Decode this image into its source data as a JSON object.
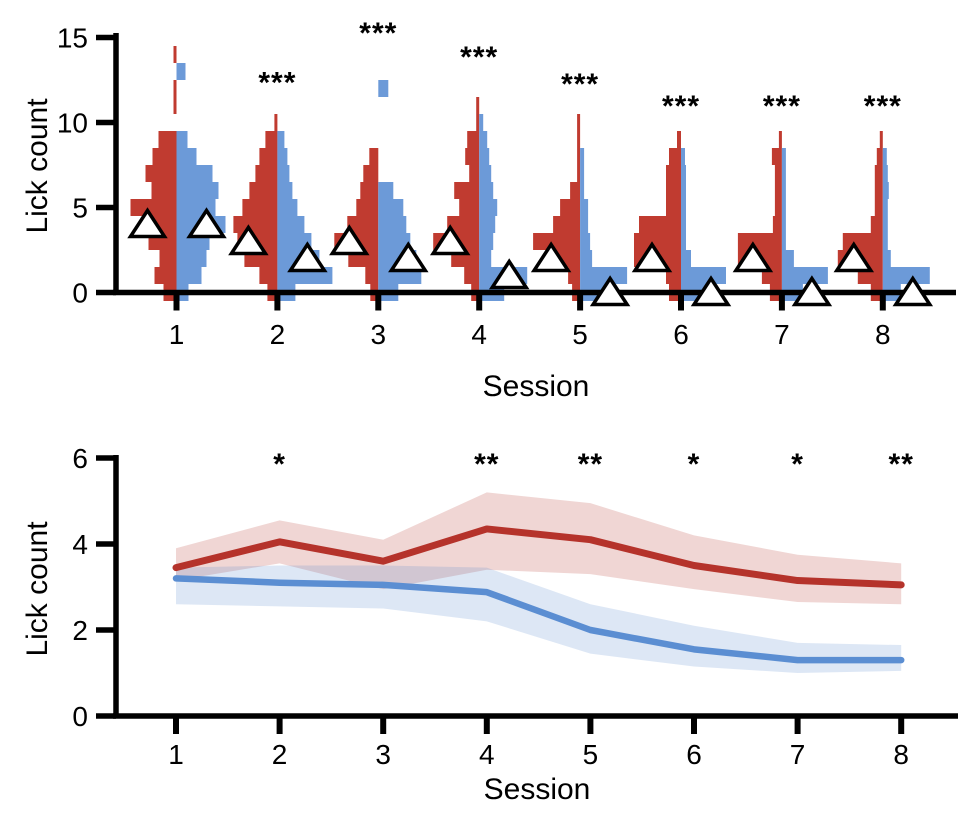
{
  "figure": {
    "background": "#ffffff",
    "colors": {
      "hist_red": "#c03b30",
      "hist_blue": "#6c9ad8",
      "line_red": "#b5332b",
      "line_blue": "#5b8ed2",
      "band_red": "rgba(182,50,42,0.20)",
      "band_blue": "rgba(85,135,205,0.20)",
      "axis": "#000000",
      "triangle_fill": "#ffffff",
      "triangle_edge": "#000000"
    }
  },
  "panels": {
    "top": {
      "ylabel": "Lick count",
      "xlabel": "Session"
    },
    "bottom": {
      "ylabel": "Lick count",
      "xlabel": "Session"
    }
  },
  "chart_data": [
    {
      "type": "split-histogram",
      "title": "",
      "xlabel": "Session",
      "ylabel": "Lick count",
      "ylim": [
        0,
        15
      ],
      "yticks": [
        0,
        5,
        10,
        15
      ],
      "xticks": [
        1,
        2,
        3,
        4,
        5,
        6,
        7,
        8
      ],
      "median_marker": "open-triangle",
      "left_series": "red",
      "right_series": "blue",
      "significance": [
        {
          "session": 2,
          "label": "***",
          "y": 12.6
        },
        {
          "session": 3,
          "label": "***",
          "y": 15.5
        },
        {
          "session": 4,
          "label": "***",
          "y": 14.1
        },
        {
          "session": 5,
          "label": "***",
          "y": 12.5
        },
        {
          "session": 6,
          "label": "***",
          "y": 11.2
        },
        {
          "session": 7,
          "label": "***",
          "y": 11.2
        },
        {
          "session": 8,
          "label": "***",
          "y": 11.2
        }
      ],
      "histograms": [
        {
          "session": 1,
          "left": [
            [
              0,
              0.26
            ],
            [
              1,
              0.44
            ],
            [
              2,
              0.34
            ],
            [
              3,
              0.56
            ],
            [
              4,
              0.66
            ],
            [
              5,
              0.92
            ],
            [
              6,
              0.5
            ],
            [
              7,
              0.62
            ],
            [
              8,
              0.48
            ],
            [
              9,
              0.36
            ],
            [
              11,
              0.06
            ],
            [
              12,
              0.06
            ],
            [
              14,
              0.06
            ]
          ],
          "right": [
            [
              0,
              0.24
            ],
            [
              1,
              0.5
            ],
            [
              2,
              0.6
            ],
            [
              3,
              0.66
            ],
            [
              4,
              0.98
            ],
            [
              5,
              0.78
            ],
            [
              6,
              0.84
            ],
            [
              7,
              0.72
            ],
            [
              8,
              0.4
            ],
            [
              9,
              0.22
            ],
            [
              13,
              0.18
            ]
          ],
          "left_median": 4,
          "right_median": 4
        },
        {
          "session": 2,
          "left": [
            [
              0,
              0.2
            ],
            [
              1,
              0.36
            ],
            [
              2,
              0.66
            ],
            [
              3,
              0.8
            ],
            [
              4,
              0.88
            ],
            [
              5,
              0.7
            ],
            [
              6,
              0.56
            ],
            [
              7,
              0.44
            ],
            [
              8,
              0.36
            ],
            [
              9,
              0.24
            ],
            [
              10,
              0.06
            ]
          ],
          "right": [
            [
              0,
              0.36
            ],
            [
              1,
              1.1
            ],
            [
              2,
              0.84
            ],
            [
              3,
              0.68
            ],
            [
              4,
              0.54
            ],
            [
              5,
              0.4
            ],
            [
              6,
              0.3
            ],
            [
              7,
              0.24
            ],
            [
              8,
              0.2
            ],
            [
              9,
              0.14
            ]
          ],
          "left_median": 3,
          "right_median": 2
        },
        {
          "session": 3,
          "left": [
            [
              0,
              0.16
            ],
            [
              1,
              0.26
            ],
            [
              2,
              0.6
            ],
            [
              3,
              0.88
            ],
            [
              4,
              0.62
            ],
            [
              5,
              0.44
            ],
            [
              6,
              0.36
            ],
            [
              7,
              0.3
            ],
            [
              8,
              0.18
            ]
          ],
          "right": [
            [
              0,
              0.4
            ],
            [
              1,
              0.86
            ],
            [
              2,
              0.76
            ],
            [
              3,
              0.64
            ],
            [
              4,
              0.56
            ],
            [
              5,
              0.5
            ],
            [
              6,
              0.3
            ],
            [
              12,
              0.2
            ]
          ],
          "left_median": 3,
          "right_median": 2
        },
        {
          "session": 4,
          "left": [
            [
              0,
              0.16
            ],
            [
              1,
              0.3
            ],
            [
              2,
              0.56
            ],
            [
              3,
              0.92
            ],
            [
              4,
              0.64
            ],
            [
              5,
              0.4
            ],
            [
              6,
              0.5
            ],
            [
              7,
              0.2
            ],
            [
              8,
              0.28
            ],
            [
              9,
              0.24
            ],
            [
              10,
              0.06
            ],
            [
              11,
              0.06
            ]
          ],
          "right": [
            [
              0,
              0.5
            ],
            [
              1,
              0.96
            ],
            [
              2,
              0.24
            ],
            [
              3,
              0.28
            ],
            [
              4,
              0.32
            ],
            [
              5,
              0.36
            ],
            [
              6,
              0.28
            ],
            [
              7,
              0.24
            ],
            [
              8,
              0.2
            ],
            [
              9,
              0.16
            ],
            [
              10,
              0.08
            ]
          ],
          "left_median": 3,
          "right_median": 1
        },
        {
          "session": 5,
          "left": [
            [
              0,
              0.16
            ],
            [
              1,
              0.24
            ],
            [
              2,
              0.54
            ],
            [
              3,
              0.94
            ],
            [
              4,
              0.54
            ],
            [
              5,
              0.4
            ],
            [
              6,
              0.2
            ],
            [
              7,
              0.06
            ],
            [
              8,
              0.06
            ],
            [
              9,
              0.06
            ],
            [
              10,
              0.06
            ]
          ],
          "right": [
            [
              0,
              0.5
            ],
            [
              1,
              0.94
            ],
            [
              2,
              0.24
            ],
            [
              3,
              0.2
            ],
            [
              4,
              0.16
            ],
            [
              5,
              0.16
            ],
            [
              6,
              0.08
            ],
            [
              7,
              0.08
            ],
            [
              8,
              0.08
            ]
          ],
          "left_median": 2,
          "right_median": 0
        },
        {
          "session": 6,
          "left": [
            [
              0,
              0.24
            ],
            [
              1,
              0.3
            ],
            [
              2,
              0.94
            ],
            [
              3,
              0.94
            ],
            [
              4,
              0.84
            ],
            [
              5,
              0.3
            ],
            [
              6,
              0.3
            ],
            [
              7,
              0.3
            ],
            [
              8,
              0.24
            ],
            [
              9,
              0.08
            ]
          ],
          "right": [
            [
              0,
              0.5
            ],
            [
              1,
              0.9
            ],
            [
              2,
              0.2
            ],
            [
              3,
              0.1
            ],
            [
              4,
              0.1
            ],
            [
              5,
              0.1
            ],
            [
              6,
              0.1
            ],
            [
              7,
              0.1
            ],
            [
              8,
              0.08
            ]
          ],
          "left_median": 2,
          "right_median": 0
        },
        {
          "session": 7,
          "left": [
            [
              0,
              0.24
            ],
            [
              1,
              0.4
            ],
            [
              2,
              0.88
            ],
            [
              3,
              0.88
            ],
            [
              4,
              0.18
            ],
            [
              5,
              0.14
            ],
            [
              6,
              0.14
            ],
            [
              7,
              0.14
            ],
            [
              8,
              0.2
            ],
            [
              9,
              0.06
            ]
          ],
          "right": [
            [
              0,
              0.42
            ],
            [
              1,
              0.92
            ],
            [
              2,
              0.24
            ],
            [
              3,
              0.08
            ],
            [
              4,
              0.08
            ],
            [
              5,
              0.08
            ],
            [
              6,
              0.08
            ],
            [
              7,
              0.08
            ],
            [
              8,
              0.08
            ]
          ],
          "left_median": 2,
          "right_median": 0
        },
        {
          "session": 8,
          "left": [
            [
              0,
              0.24
            ],
            [
              1,
              0.5
            ],
            [
              2,
              0.9
            ],
            [
              3,
              0.8
            ],
            [
              4,
              0.24
            ],
            [
              5,
              0.16
            ],
            [
              6,
              0.16
            ],
            [
              7,
              0.16
            ],
            [
              8,
              0.12
            ],
            [
              9,
              0.06
            ]
          ],
          "right": [
            [
              0,
              0.36
            ],
            [
              1,
              0.94
            ],
            [
              2,
              0.16
            ],
            [
              3,
              0.1
            ],
            [
              4,
              0.1
            ],
            [
              5,
              0.1
            ],
            [
              6,
              0.12
            ],
            [
              7,
              0.1
            ],
            [
              8,
              0.08
            ]
          ],
          "left_median": 2,
          "right_median": 0
        }
      ]
    },
    {
      "type": "line",
      "title": "",
      "xlabel": "Session",
      "ylabel": "Lick count",
      "ylim": [
        0,
        6
      ],
      "yticks": [
        0,
        2,
        4,
        6
      ],
      "x": [
        1,
        2,
        3,
        4,
        5,
        6,
        7,
        8
      ],
      "series": [
        {
          "name": "red",
          "values": [
            3.45,
            4.05,
            3.6,
            4.35,
            4.1,
            3.5,
            3.15,
            3.05
          ],
          "upper": [
            3.9,
            4.55,
            4.1,
            5.2,
            4.95,
            4.2,
            3.75,
            3.55
          ],
          "lower": [
            3.15,
            3.55,
            2.95,
            3.4,
            3.3,
            2.95,
            2.65,
            2.6
          ]
        },
        {
          "name": "blue",
          "values": [
            3.2,
            3.1,
            3.05,
            2.88,
            2.0,
            1.55,
            1.3,
            1.3
          ],
          "upper": [
            3.45,
            3.5,
            3.5,
            3.45,
            2.6,
            2.1,
            1.7,
            1.65
          ],
          "lower": [
            2.6,
            2.55,
            2.5,
            2.2,
            1.45,
            1.15,
            1.0,
            1.05
          ]
        }
      ],
      "significance": [
        {
          "x": 2,
          "label": "*",
          "y": 5.95
        },
        {
          "x": 4,
          "label": "**",
          "y": 5.95
        },
        {
          "x": 5,
          "label": "**",
          "y": 5.95
        },
        {
          "x": 6,
          "label": "*",
          "y": 5.95
        },
        {
          "x": 7,
          "label": "*",
          "y": 5.95
        },
        {
          "x": 8,
          "label": "**",
          "y": 5.95
        }
      ]
    }
  ]
}
